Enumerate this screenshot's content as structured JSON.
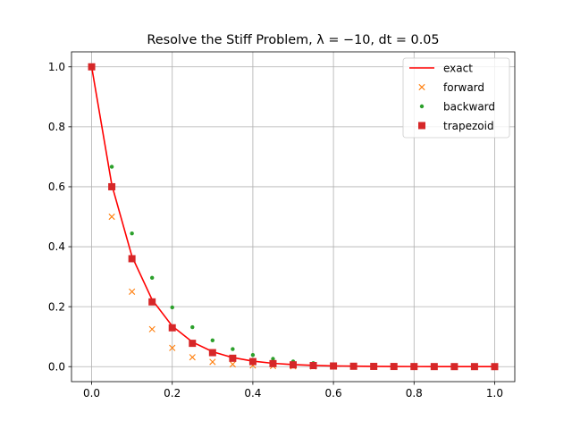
{
  "chart_data": {
    "type": "line",
    "title": "Resolve the Stiff Problem, λ = −10, dt = 0.05",
    "xlabel": "",
    "ylabel": "",
    "xlim": [
      -0.05,
      1.05
    ],
    "ylim": [
      -0.05,
      1.05
    ],
    "xticks": [
      0.0,
      0.2,
      0.4,
      0.6,
      0.8,
      1.0
    ],
    "xtick_labels": [
      "0.0",
      "0.2",
      "0.4",
      "0.6",
      "0.8",
      "1.0"
    ],
    "yticks": [
      0.0,
      0.2,
      0.4,
      0.6,
      0.8,
      1.0
    ],
    "ytick_labels": [
      "0.0",
      "0.2",
      "0.4",
      "0.6",
      "0.8",
      "1.0"
    ],
    "grid": true,
    "legend_position": "top-right",
    "x": [
      0.0,
      0.05,
      0.1,
      0.15,
      0.2,
      0.25,
      0.3,
      0.35,
      0.4,
      0.45,
      0.5,
      0.55,
      0.6,
      0.65,
      0.7,
      0.75,
      0.8,
      0.85,
      0.9,
      0.95,
      1.0
    ],
    "series": [
      {
        "name": "exact",
        "marker": "line",
        "color": "#ff0000",
        "values": [
          1.0,
          0.6065,
          0.3679,
          0.2231,
          0.1353,
          0.0821,
          0.0498,
          0.0302,
          0.0183,
          0.0111,
          0.0067,
          0.0041,
          0.0025,
          0.0015,
          0.0009,
          0.0006,
          0.0003,
          0.0002,
          0.0001,
          0.0001,
          0.0
        ]
      },
      {
        "name": "forward",
        "marker": "x",
        "color": "#ff7f0e",
        "values": [
          1.0,
          0.5,
          0.25,
          0.125,
          0.0625,
          0.0313,
          0.0156,
          0.0078,
          0.0039,
          0.002,
          0.001,
          0.0005,
          0.0002,
          0.0001,
          0.0001,
          0.0,
          0.0,
          0.0,
          0.0,
          0.0,
          0.0
        ]
      },
      {
        "name": "backward",
        "marker": "dot",
        "color": "#2ca02c",
        "values": [
          1.0,
          0.6667,
          0.4444,
          0.2963,
          0.1975,
          0.1317,
          0.0878,
          0.0585,
          0.039,
          0.026,
          0.0173,
          0.0116,
          0.0077,
          0.0051,
          0.0034,
          0.0023,
          0.0015,
          0.001,
          0.0007,
          0.0004,
          0.0003
        ]
      },
      {
        "name": "trapezoid",
        "marker": "square",
        "color": "#d62728",
        "values": [
          1.0,
          0.6,
          0.36,
          0.216,
          0.1296,
          0.0778,
          0.0467,
          0.028,
          0.0168,
          0.0101,
          0.006,
          0.0036,
          0.0022,
          0.0013,
          0.0008,
          0.0005,
          0.0003,
          0.0002,
          0.0001,
          0.0001,
          0.0
        ]
      }
    ]
  }
}
